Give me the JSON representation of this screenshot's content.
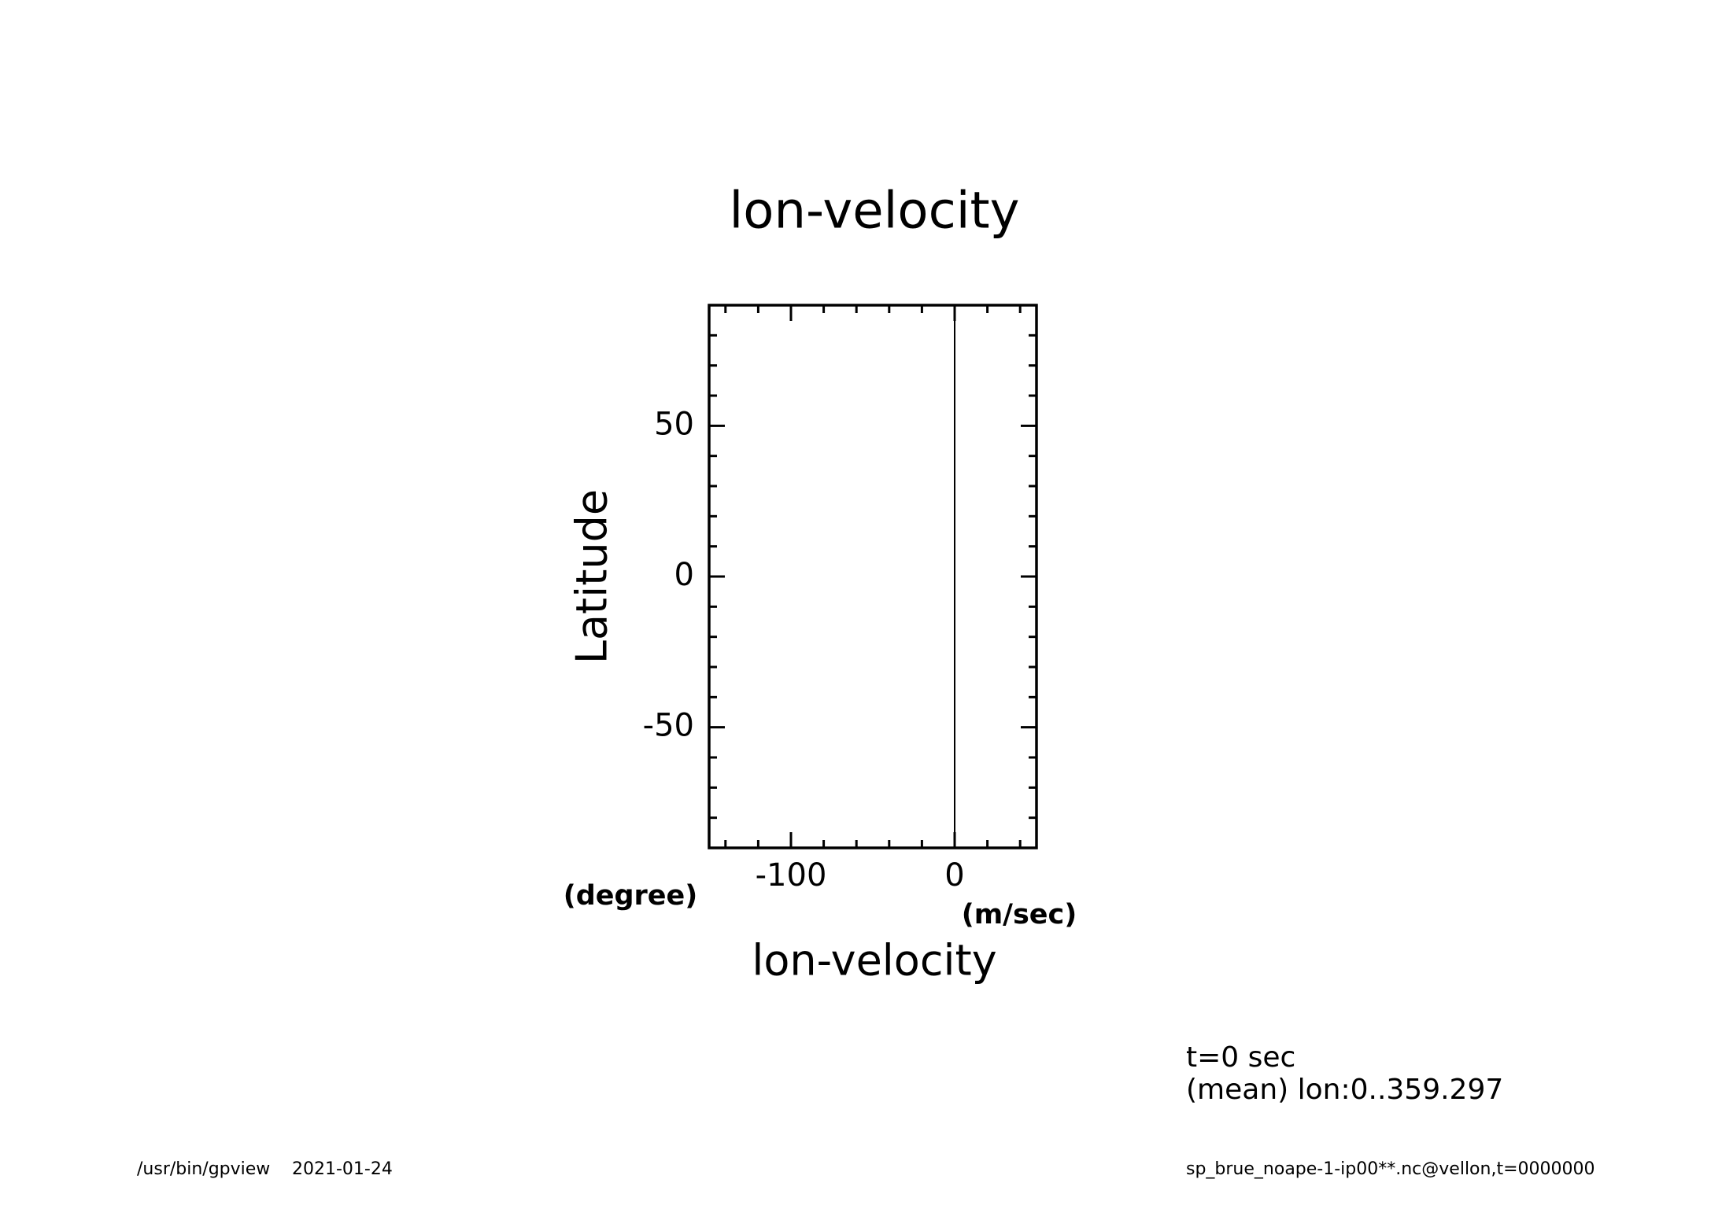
{
  "chart_data": {
    "type": "line",
    "title": "lon-velocity",
    "x_label": "lon-velocity",
    "x_unit": "(m/sec)",
    "y_label": "Latitude",
    "y_unit": "(degree)",
    "values": [
      0,
      0
    ],
    "latitudes": [
      -88,
      88
    ],
    "color": "#000000",
    "xlim": [
      -150,
      50
    ],
    "ylim": [
      -90,
      90
    ],
    "xticks": [
      -100,
      0
    ],
    "xticks_minor": [
      -140,
      -120,
      -80,
      -60,
      -40,
      -20,
      20,
      40
    ],
    "yticks": [
      -50,
      0,
      50
    ],
    "yticks_minor": [
      -80,
      -70,
      -60,
      -40,
      -30,
      -20,
      -10,
      10,
      20,
      30,
      40,
      60,
      70,
      80
    ],
    "annotations": [
      "t=0 sec",
      "(mean) lon:0..359.297"
    ],
    "footer": [
      "/usr/bin/gpview",
      "2021-01-24",
      "sp_brue_noape-1-ip00**.nc@vellon,t=0000000"
    ]
  }
}
